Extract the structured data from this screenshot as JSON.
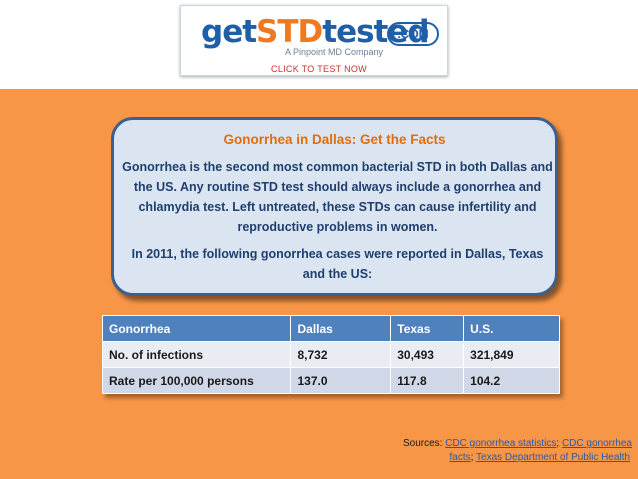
{
  "header": {
    "logo": {
      "word_get": "get",
      "word_std": "STD",
      "word_tested": "tested",
      "dotcom": ".COM",
      "tagline": "A Pinpoint MD Company"
    },
    "cta_label": "CLICK TO TEST NOW"
  },
  "card": {
    "title": "Gonorrhea in Dallas: Get the Facts",
    "paragraph1": "Gonorrhea is the second most common bacterial STD in both Dallas and the US. Any routine STD test should always include a gonorrhea and chlamydia test. Left untreated, these STDs can cause infertility and reproductive problems in women.",
    "paragraph2": "In 2011, the following gonorrhea cases were reported in Dallas, Texas and the US:"
  },
  "table": {
    "headers": [
      "Gonorrhea",
      "Dallas",
      "Texas",
      "U.S."
    ],
    "rows": [
      [
        "No. of infections",
        "8,732",
        "30,493",
        "321,849"
      ],
      [
        "Rate per 100,000 persons",
        "137.0",
        "117.8",
        "104.2"
      ]
    ]
  },
  "sources": {
    "prefix": "Sources: ",
    "link1": "CDC gonorrhea statistics",
    "sep1": "; ",
    "link2a": "CDC gonorrhea",
    "link2b": "facts",
    "sep2": "; ",
    "link3": "Texas Department of Public Health"
  },
  "colors": {
    "background": "#f79646",
    "card_fill": "#dbe5f1",
    "card_border": "#3c5f8f",
    "title_orange": "#e36c09",
    "table_header": "#4f81bd",
    "cta_red": "#c8322c"
  }
}
